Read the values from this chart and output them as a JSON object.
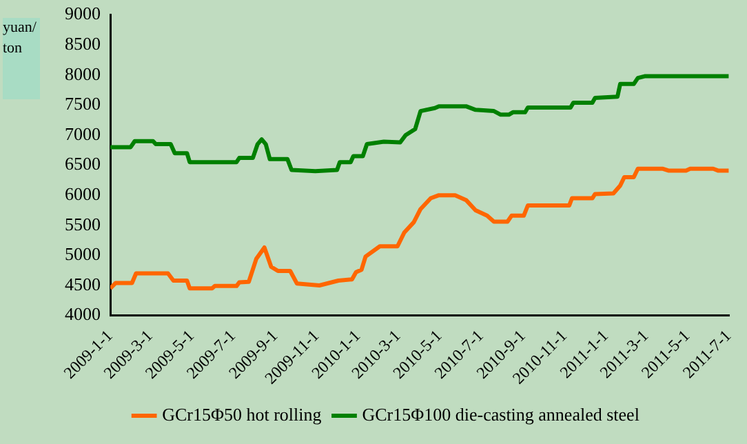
{
  "chart_data": {
    "type": "line",
    "ylabel": "yuan/ton",
    "legend": "bottom",
    "grid": false,
    "marker": "none",
    "line_style": "solid",
    "ylim": [
      4000,
      9000
    ],
    "yticks": [
      4000,
      4500,
      5000,
      5500,
      6000,
      6500,
      7000,
      7500,
      8000,
      8500,
      9000
    ],
    "xlim": [
      "2009-01-01",
      "2011-07-01"
    ],
    "xticks": [
      {
        "value": "2009-01-01",
        "label": "2009-1-1"
      },
      {
        "value": "2009-03-01",
        "label": "2009-3-1"
      },
      {
        "value": "2009-05-01",
        "label": "2009-5-1"
      },
      {
        "value": "2009-07-01",
        "label": "2009-7-1"
      },
      {
        "value": "2009-09-01",
        "label": "2009-9-1"
      },
      {
        "value": "2009-11-01",
        "label": "2009-11-1"
      },
      {
        "value": "2010-01-01",
        "label": "2010-1-1"
      },
      {
        "value": "2010-03-01",
        "label": "2010-3-1"
      },
      {
        "value": "2010-05-01",
        "label": "2010-5-1"
      },
      {
        "value": "2010-07-01",
        "label": "2010-7-1"
      },
      {
        "value": "2010-09-01",
        "label": "2010-9-1"
      },
      {
        "value": "2010-11-01",
        "label": "2010-11-1"
      },
      {
        "value": "2011-01-01",
        "label": "2011-1-1"
      },
      {
        "value": "2011-03-01",
        "label": "2011-3-1"
      },
      {
        "value": "2011-05-01",
        "label": "2011-5-1"
      },
      {
        "value": "2011-07-01",
        "label": "2011-7-1"
      }
    ],
    "series": [
      {
        "name": "GCr15Φ50 hot rolling",
        "color": "#ff6600",
        "x": [
          "2009-01-01",
          "2009-01-09",
          "2009-02-02",
          "2009-02-08",
          "2009-03-27",
          "2009-04-04",
          "2009-04-24",
          "2009-04-28",
          "2009-05-31",
          "2009-06-04",
          "2009-07-06",
          "2009-07-10",
          "2009-07-24",
          "2009-08-04",
          "2009-08-16",
          "2009-08-26",
          "2009-09-05",
          "2009-09-23",
          "2009-10-03",
          "2009-11-05",
          "2009-12-03",
          "2009-12-23",
          "2009-12-29",
          "2010-01-06",
          "2010-01-12",
          "2010-02-02",
          "2010-02-28",
          "2010-03-10",
          "2010-03-24",
          "2010-04-03",
          "2010-04-18",
          "2010-04-30",
          "2010-05-24",
          "2010-06-09",
          "2010-06-23",
          "2010-07-10",
          "2010-07-20",
          "2010-08-09",
          "2010-08-15",
          "2010-09-02",
          "2010-09-08",
          "2010-11-08",
          "2010-11-12",
          "2010-12-12",
          "2010-12-16",
          "2011-01-12",
          "2011-01-22",
          "2011-01-28",
          "2011-02-11",
          "2011-02-17",
          "2011-03-26",
          "2011-04-03",
          "2011-04-29",
          "2011-05-05",
          "2011-06-08",
          "2011-06-15",
          "2011-07-01"
        ],
        "values": [
          4450,
          4540,
          4540,
          4700,
          4700,
          4580,
          4580,
          4450,
          4450,
          4490,
          4490,
          4550,
          4560,
          4940,
          5130,
          4810,
          4740,
          4740,
          4530,
          4500,
          4580,
          4600,
          4720,
          4760,
          4980,
          5150,
          5150,
          5380,
          5550,
          5770,
          5950,
          6000,
          6000,
          5920,
          5750,
          5660,
          5560,
          5560,
          5660,
          5660,
          5830,
          5830,
          5950,
          5950,
          6020,
          6030,
          6160,
          6300,
          6300,
          6440,
          6440,
          6410,
          6410,
          6440,
          6440,
          6410,
          6410
        ]
      },
      {
        "name": "GCr15Φ100 die-casting annealed steel",
        "color": "#008000",
        "x": [
          "2009-01-01",
          "2009-01-31",
          "2009-02-06",
          "2009-03-05",
          "2009-03-09",
          "2009-03-31",
          "2009-04-06",
          "2009-04-24",
          "2009-04-28",
          "2009-07-06",
          "2009-07-10",
          "2009-07-30",
          "2009-08-06",
          "2009-08-12",
          "2009-08-18",
          "2009-08-24",
          "2009-09-19",
          "2009-09-25",
          "2009-10-30",
          "2009-12-01",
          "2009-12-05",
          "2009-12-21",
          "2009-12-25",
          "2010-01-08",
          "2010-01-14",
          "2010-02-08",
          "2010-03-04",
          "2010-03-12",
          "2010-03-26",
          "2010-04-03",
          "2010-04-24",
          "2010-04-30",
          "2010-06-09",
          "2010-06-23",
          "2010-07-20",
          "2010-07-30",
          "2010-08-11",
          "2010-08-17",
          "2010-09-04",
          "2010-09-08",
          "2010-11-10",
          "2010-11-14",
          "2010-12-12",
          "2010-12-16",
          "2011-01-18",
          "2011-01-22",
          "2011-02-11",
          "2011-02-17",
          "2011-02-27",
          "2011-07-01"
        ],
        "values": [
          6800,
          6800,
          6900,
          6900,
          6850,
          6850,
          6700,
          6700,
          6550,
          6550,
          6620,
          6620,
          6850,
          6930,
          6850,
          6600,
          6600,
          6420,
          6400,
          6420,
          6550,
          6550,
          6650,
          6650,
          6850,
          6890,
          6880,
          7000,
          7100,
          7400,
          7450,
          7480,
          7480,
          7420,
          7400,
          7340,
          7340,
          7380,
          7380,
          7460,
          7460,
          7540,
          7540,
          7620,
          7640,
          7850,
          7850,
          7950,
          7980,
          7980
        ]
      }
    ]
  }
}
